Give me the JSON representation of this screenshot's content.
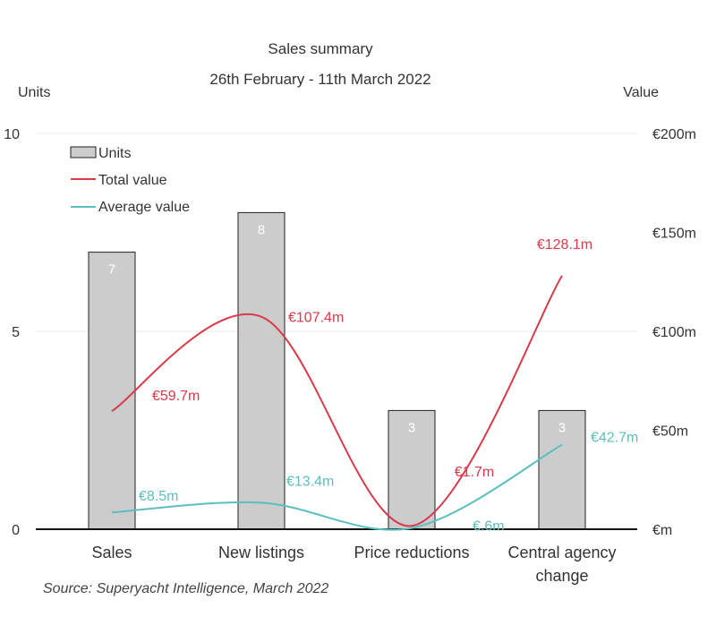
{
  "chart_data": {
    "type": "bar",
    "title": "Sales summary",
    "subtitle": "26th February - 11th March 2022",
    "left_axis_title": "Units",
    "right_axis_title": "Value",
    "left_ylim": [
      0,
      10
    ],
    "right_ylim": [
      0,
      200
    ],
    "left_ticks": [
      "0",
      "5",
      "10"
    ],
    "left_tick_values": [
      0,
      5,
      10
    ],
    "right_ticks": [
      "€m",
      "€50m",
      "€100m",
      "€150m",
      "€200m"
    ],
    "right_tick_values": [
      0,
      50,
      100,
      150,
      200
    ],
    "categories": [
      "Sales",
      "New listings",
      "Price reductions",
      "Central agency change"
    ],
    "category_display": [
      [
        "Sales"
      ],
      [
        "New listings"
      ],
      [
        "Price reductions"
      ],
      [
        "Central agency",
        "change"
      ]
    ],
    "series": [
      {
        "name": "Units",
        "kind": "bar",
        "axis": "left",
        "color": "#cccccc",
        "values": [
          7,
          8,
          3,
          3
        ],
        "labels": [
          "7",
          "8",
          "3",
          "3"
        ]
      },
      {
        "name": "Total value",
        "kind": "line",
        "axis": "right",
        "color": "#d93a4a",
        "values": [
          59.7,
          107.4,
          1.7,
          128.1
        ],
        "labels": [
          "€59.7m",
          "€107.4m",
          "€1.7m",
          "€128.1m"
        ]
      },
      {
        "name": "Average value",
        "kind": "line",
        "axis": "right",
        "color": "#5bbfbf",
        "values": [
          8.5,
          13.4,
          0.6,
          42.7
        ],
        "labels": [
          "€8.5m",
          "€13.4m",
          "€.6m",
          "€42.7m"
        ]
      }
    ],
    "legend_position": "top-left",
    "grid": true,
    "source": "Source: Superyacht Intelligence, March 2022"
  }
}
